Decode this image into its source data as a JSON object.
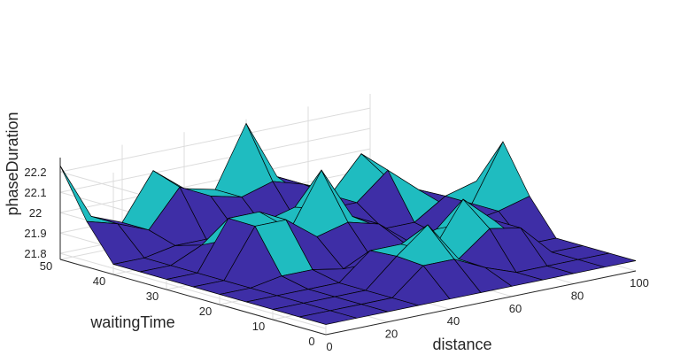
{
  "chart_data": {
    "type": "surface",
    "xlabel": "distance",
    "ylabel": "waitingTime",
    "zlabel": "phaseDuration",
    "xlim": [
      0,
      100
    ],
    "ylim": [
      0,
      50
    ],
    "zlim": [
      21.77,
      22.27
    ],
    "x_ticks": [
      "0",
      "20",
      "40",
      "60",
      "80",
      "100"
    ],
    "y_ticks": [
      "0",
      "10",
      "20",
      "30",
      "40",
      "50"
    ],
    "z_ticks": [
      "21.8",
      "21.9",
      "22",
      "22.1",
      "22.2"
    ],
    "grid": true,
    "colormap_levels": [
      "#3e2ea6",
      "#1fbcc0",
      "#f8b73b",
      "#f9f51d"
    ],
    "color_band_thresholds": [
      21.94,
      22.1,
      22.17
    ],
    "x": [
      0,
      10,
      20,
      30,
      40,
      50,
      60,
      70,
      80,
      90,
      100
    ],
    "y": [
      0,
      5,
      10,
      15,
      20,
      25,
      30,
      35,
      40,
      45,
      50
    ],
    "peaks": [
      {
        "x": 0,
        "y": 50,
        "z": 22.23
      },
      {
        "x": 25,
        "y": 28,
        "z": 22.18
      },
      {
        "x": 32,
        "y": 48,
        "z": 22.2
      },
      {
        "x": 48,
        "y": 10,
        "z": 22.12
      },
      {
        "x": 50,
        "y": 30,
        "z": 22.2
      },
      {
        "x": 60,
        "y": 50,
        "z": 22.25
      },
      {
        "x": 72,
        "y": 14,
        "z": 22.15
      },
      {
        "x": 80,
        "y": 38,
        "z": 22.2
      },
      {
        "x": 100,
        "y": 25,
        "z": 22.22
      }
    ],
    "z_base": 21.82
  }
}
